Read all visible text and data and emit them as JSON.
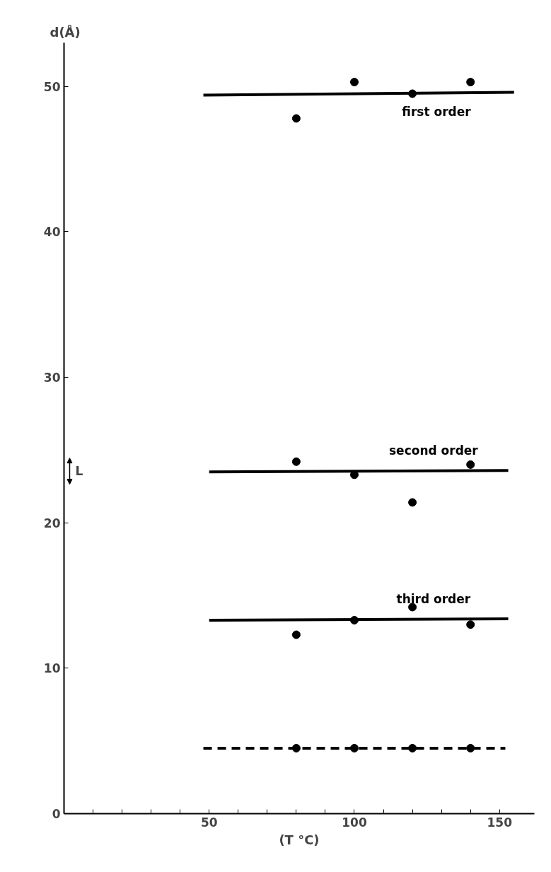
{
  "chart_data": {
    "type": "scatter",
    "xlabel": "(T °C)",
    "ylabel": "d(Å)",
    "x": [
      80,
      100,
      120,
      140
    ],
    "marker": "circle",
    "grid": false,
    "xlim": [
      0,
      162
    ],
    "ylim": [
      0,
      53
    ],
    "xticks": [
      {
        "value": 10,
        "label": null
      },
      {
        "value": 20,
        "label": null
      },
      {
        "value": 30,
        "label": null
      },
      {
        "value": 40,
        "label": null
      },
      50,
      {
        "value": 60,
        "label": null
      },
      {
        "value": 70,
        "label": null
      },
      {
        "value": 80,
        "label": null
      },
      {
        "value": 90,
        "label": null
      },
      100,
      {
        "value": 110,
        "label": null
      },
      {
        "value": 120,
        "label": null
      },
      {
        "value": 130,
        "label": null
      },
      {
        "value": 140,
        "label": null
      },
      150
    ],
    "yticks": [
      0,
      10,
      20,
      30,
      40,
      50
    ],
    "series": [
      {
        "color": "#000000",
        "values": [
          47.8,
          50.3,
          49.5,
          50.3
        ]
      },
      {
        "color": "#000000",
        "values": [
          24.2,
          23.3,
          21.4,
          24.0
        ]
      },
      {
        "color": "#000000",
        "values": [
          12.3,
          13.3,
          14.2,
          13.0
        ]
      },
      {
        "color": "#000000",
        "values": [
          4.5,
          4.5,
          4.5,
          4.5
        ]
      },
      {
        "type": "line",
        "name": "first order",
        "color": "#000000",
        "x": [
          48,
          155
        ],
        "values": [
          49.4,
          49.6
        ],
        "line_style": "solid",
        "marker": "none"
      },
      {
        "type": "line",
        "name": "second order",
        "color": "#000000",
        "x": [
          50,
          153
        ],
        "values": [
          23.5,
          23.6
        ],
        "line_style": "solid",
        "marker": "none"
      },
      {
        "type": "line",
        "name": "third order",
        "color": "#000000",
        "x": [
          50,
          153
        ],
        "values": [
          13.3,
          13.4
        ],
        "line_style": "solid",
        "marker": "none"
      },
      {
        "type": "line",
        "color": "#000000",
        "x": [
          48,
          152
        ],
        "values": [
          4.5,
          4.5
        ],
        "line_style": "dashed",
        "marker": "none"
      }
    ],
    "annotations": [
      "L"
    ]
  }
}
